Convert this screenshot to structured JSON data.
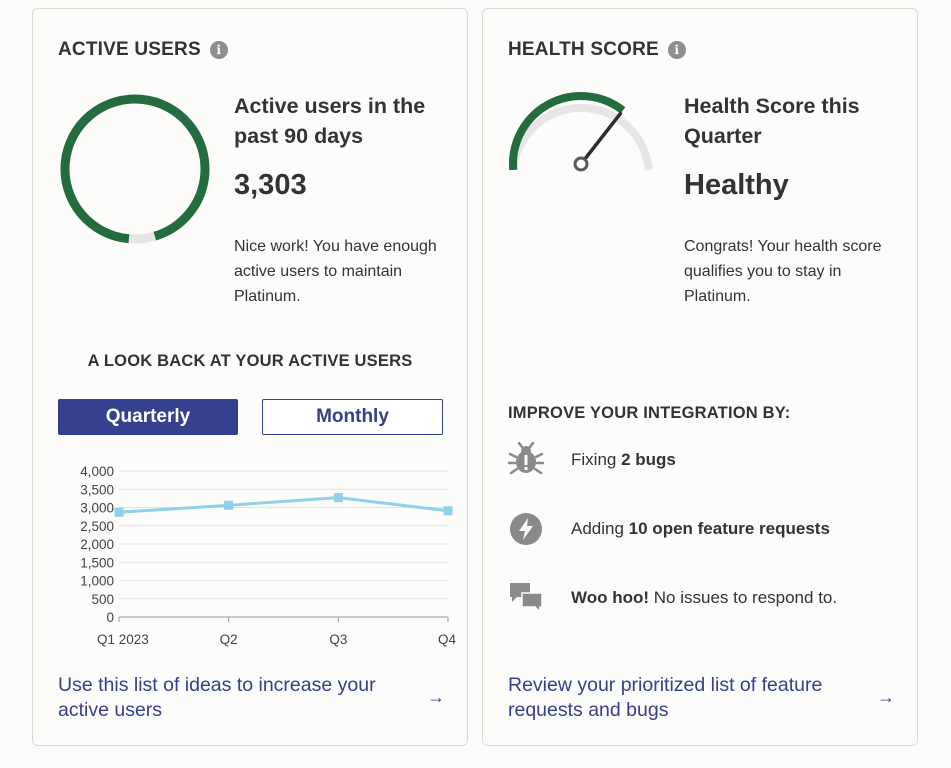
{
  "active_users": {
    "title": "ACTIVE USERS",
    "heading": "Active users in the past 90 days",
    "value": "3,303",
    "description": "Nice work! You have enough active users to maintain Platinum.",
    "progress_fraction": 0.94,
    "colors": {
      "progress": "#246c40",
      "track": "#e6e6e6"
    },
    "lookback_title": "A LOOK BACK AT YOUR ACTIVE USERS",
    "toggle": {
      "quarterly": "Quarterly",
      "monthly": "Monthly",
      "selected": "quarterly"
    },
    "footer_link": "Use this list of ideas to increase your active users"
  },
  "chart_data": {
    "type": "line",
    "categories": [
      "Q1 2023",
      "Q2",
      "Q3",
      "Q4"
    ],
    "series": [
      {
        "values": [
          2870,
          3060,
          3270,
          2910
        ],
        "color": "#8fd0ea"
      }
    ],
    "ylim": [
      0,
      4000
    ],
    "yticks": [
      "0",
      "500",
      "1,000",
      "1,500",
      "2,000",
      "2,500",
      "3,000",
      "3,500",
      "4,000"
    ],
    "grid": true
  },
  "health_score": {
    "title": "HEALTH SCORE",
    "heading": "Health Score this Quarter",
    "value": "Healthy",
    "description": "Congrats! Your health score qualifies you to stay in Platinum.",
    "gauge_level": 0.7,
    "colors": {
      "progress": "#246c40",
      "track": "#e6e6e6",
      "needle": "#2c2c2c"
    },
    "improve_title": "IMPROVE YOUR INTEGRATION BY:",
    "items": [
      {
        "icon": "bug-icon",
        "before": "Fixing ",
        "bold": "2 bugs",
        "after": ""
      },
      {
        "icon": "lightning-icon",
        "before": "Adding ",
        "bold": "10 open feature requests",
        "after": ""
      },
      {
        "icon": "chat-bubbles-icon",
        "before": "",
        "bold": "Woo hoo!",
        "after": " No issues to respond to."
      }
    ],
    "footer_link": "Review your prioritized list of feature requests and bugs"
  },
  "icons": {
    "info": "info-icon",
    "arrow": "arrow-right-icon"
  }
}
